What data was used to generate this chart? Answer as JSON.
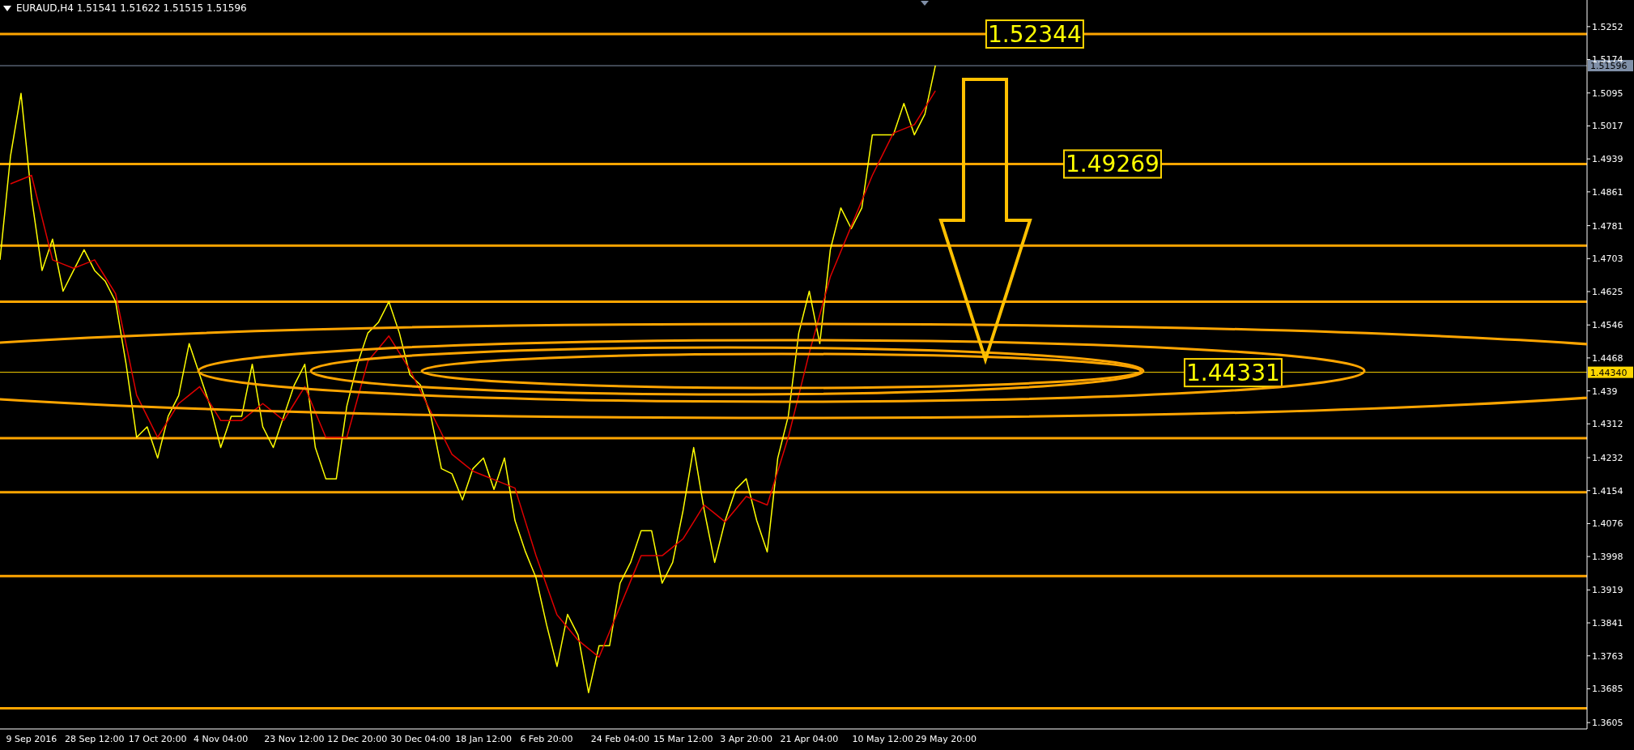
{
  "chart_data": {
    "type": "line",
    "title": "EURAUD,H4  1.51541 1.51622 1.51515 1.51596",
    "categories": [
      null,
      null,
      null,
      "9 Sep 2016",
      null,
      null,
      null,
      null,
      null,
      "28 Sep 12:00",
      null,
      null,
      null,
      null,
      null,
      "17 Oct 20:00",
      null,
      null,
      null,
      null,
      null,
      "4 Nov 04:00",
      null,
      null,
      null,
      null,
      null,
      null,
      "23 Nov 12:00",
      null,
      null,
      null,
      null,
      null,
      "12 Dec 20:00",
      null,
      null,
      null,
      null,
      null,
      "30 Dec 04:00",
      null,
      null,
      null,
      null,
      null,
      "18 Jan 12:00",
      null,
      null,
      null,
      null,
      null,
      "6 Feb 20:00",
      null,
      null,
      null,
      null,
      null,
      null,
      "24 Feb 04:00",
      null,
      null,
      null,
      null,
      null,
      "15 Mar 12:00",
      null,
      null,
      null,
      null,
      null,
      "3 Apr 20:00",
      null,
      null,
      null,
      null,
      null,
      "21 Apr 04:00",
      null,
      null,
      null,
      null,
      null,
      null,
      "10 May 12:00",
      null,
      null,
      null,
      null,
      null,
      "29 May 20:00",
      null,
      null,
      null,
      null,
      null,
      null,
      null,
      null,
      null,
      null,
      null,
      null,
      null,
      null,
      null,
      null,
      null,
      null,
      null,
      null,
      null,
      null,
      null,
      null,
      null,
      null,
      null,
      null,
      null,
      null,
      null,
      null,
      null,
      null,
      null,
      null,
      null,
      null,
      null,
      null,
      null,
      null,
      null,
      null,
      null,
      null,
      null,
      null,
      null,
      null,
      null,
      null,
      null,
      null,
      null,
      null,
      null,
      null,
      null,
      null,
      null
    ],
    "series": [
      {
        "color": "#ffff00",
        "values": [
          1.47,
          1.4946,
          1.5094,
          1.4848,
          1.4675,
          1.4749,
          1.4626,
          1.4675,
          1.4724,
          1.4675,
          1.465,
          1.4601,
          1.4453,
          1.428,
          1.4305,
          1.4231,
          1.433,
          1.4379,
          1.4502,
          1.4428,
          1.4354,
          1.4256,
          1.433,
          1.433,
          1.4453,
          1.4305,
          1.4256,
          1.433,
          1.4404,
          1.4453,
          1.4256,
          1.4182,
          1.4182,
          1.4354,
          1.4453,
          1.4527,
          1.4552,
          1.4601,
          1.4527,
          1.4428,
          1.4404,
          1.433,
          1.4206,
          1.4194,
          1.4132,
          1.4206,
          1.4231,
          1.4157,
          1.4231,
          1.4083,
          1.4009,
          1.3948,
          1.3837,
          1.3738,
          1.3861,
          1.3812,
          1.3676,
          1.3787,
          1.3787,
          1.3935,
          1.3984,
          1.4059,
          1.4059,
          1.3935,
          1.3984,
          1.4108,
          1.4256,
          1.4108,
          1.3984,
          1.4083,
          1.4157,
          1.4182,
          1.4083,
          1.4009,
          1.4231,
          1.433,
          1.4527,
          1.4626,
          1.4502,
          1.4724,
          1.4823,
          1.4774,
          1.4823,
          1.4996,
          1.4996,
          1.4996,
          1.507,
          1.4996,
          1.5045,
          1.516,
          null,
          null,
          null,
          null,
          null,
          null,
          null,
          null,
          null,
          null,
          null,
          null,
          null,
          null,
          null,
          null,
          null,
          null,
          null,
          null,
          null,
          null,
          null,
          null,
          null,
          null,
          null,
          null,
          null,
          null,
          null,
          null,
          null,
          null,
          null,
          null,
          null,
          null,
          null,
          null,
          null,
          null,
          null,
          null,
          null,
          null,
          null,
          null,
          null,
          null,
          null,
          null,
          null,
          null,
          null,
          null,
          null,
          null,
          null,
          null,
          null,
          null
        ]
      },
      {
        "color": "#e00000",
        "values": [
          null,
          1.488,
          1.489,
          1.49,
          1.48,
          1.47,
          1.469,
          1.468,
          1.469,
          1.47,
          1.466,
          1.462,
          1.45,
          1.438,
          1.433,
          1.428,
          1.432,
          1.436,
          1.438,
          1.44,
          1.436,
          1.432,
          1.432,
          1.432,
          1.434,
          1.436,
          1.434,
          1.432,
          1.436,
          1.44,
          1.434,
          1.428,
          1.428,
          1.428,
          1.437,
          1.446,
          1.449,
          1.452,
          1.448,
          1.444,
          1.439,
          1.434,
          1.429,
          1.424,
          1.422,
          1.42,
          1.419,
          1.418,
          1.417,
          1.416,
          1.408,
          1.4,
          1.393,
          1.386,
          1.383,
          1.38,
          1.378,
          1.376,
          1.382,
          1.388,
          1.394,
          1.4,
          1.4,
          1.4,
          1.402,
          1.404,
          1.408,
          1.412,
          1.41,
          1.408,
          1.411,
          1.414,
          1.413,
          1.412,
          1.42,
          1.428,
          1.438,
          1.448,
          1.457,
          1.466,
          1.472,
          1.478,
          1.484,
          1.49,
          1.495,
          1.5,
          1.501,
          1.502,
          1.506,
          1.51,
          null,
          null,
          null,
          null,
          null,
          null,
          null,
          null,
          null,
          null,
          null,
          null,
          null,
          null,
          null,
          null,
          null,
          null,
          null,
          null,
          null,
          null,
          null,
          null,
          null,
          null,
          null,
          null,
          null,
          null,
          null,
          null,
          null,
          null,
          null,
          null,
          null,
          null,
          null,
          null,
          null,
          null,
          null,
          null,
          null,
          null,
          null,
          null,
          null,
          null,
          null,
          null,
          null,
          null,
          null,
          null,
          null,
          null,
          null,
          null,
          null,
          null
        ]
      }
    ],
    "ylim": [
      1.359,
      1.5315
    ],
    "yticks": [
      1.3605,
      1.3685,
      1.3763,
      1.3841,
      1.3919,
      1.3998,
      1.4076,
      1.4154,
      1.4232,
      1.4312,
      1.439,
      1.4468,
      1.4546,
      1.4625,
      1.4703,
      1.4781,
      1.4861,
      1.4939,
      1.5017,
      1.5095,
      1.5174,
      1.5252
    ],
    "grid": false,
    "ref_lines": [
      {
        "axis": "y",
        "value": 1.52344,
        "color": "#ffa500"
      },
      {
        "axis": "y",
        "value": 1.49269,
        "color": "#ffa500"
      },
      {
        "axis": "y",
        "value": 1.4734,
        "color": "#ffa500"
      },
      {
        "axis": "y",
        "value": 1.4601,
        "color": "#ffa500"
      },
      {
        "axis": "y",
        "value": 1.4278,
        "color": "#ffa500"
      },
      {
        "axis": "y",
        "value": 1.415,
        "color": "#ffa500"
      },
      {
        "axis": "y",
        "value": 1.3952,
        "color": "#ffa500"
      },
      {
        "axis": "y",
        "value": 1.3639,
        "color": "#ffa500"
      },
      {
        "axis": "y",
        "value": 1.51596,
        "label": "1.51596",
        "color": "#8090a8"
      },
      {
        "axis": "y",
        "value": 1.4434,
        "label": "1.44340",
        "color": "#ffd700"
      }
    ],
    "annotations": [
      {
        "text": "1.52344",
        "y": 1.52344
      },
      {
        "text": "1.49269",
        "y": 1.49269
      },
      {
        "text": "1.44331",
        "y": 1.44331
      }
    ]
  }
}
